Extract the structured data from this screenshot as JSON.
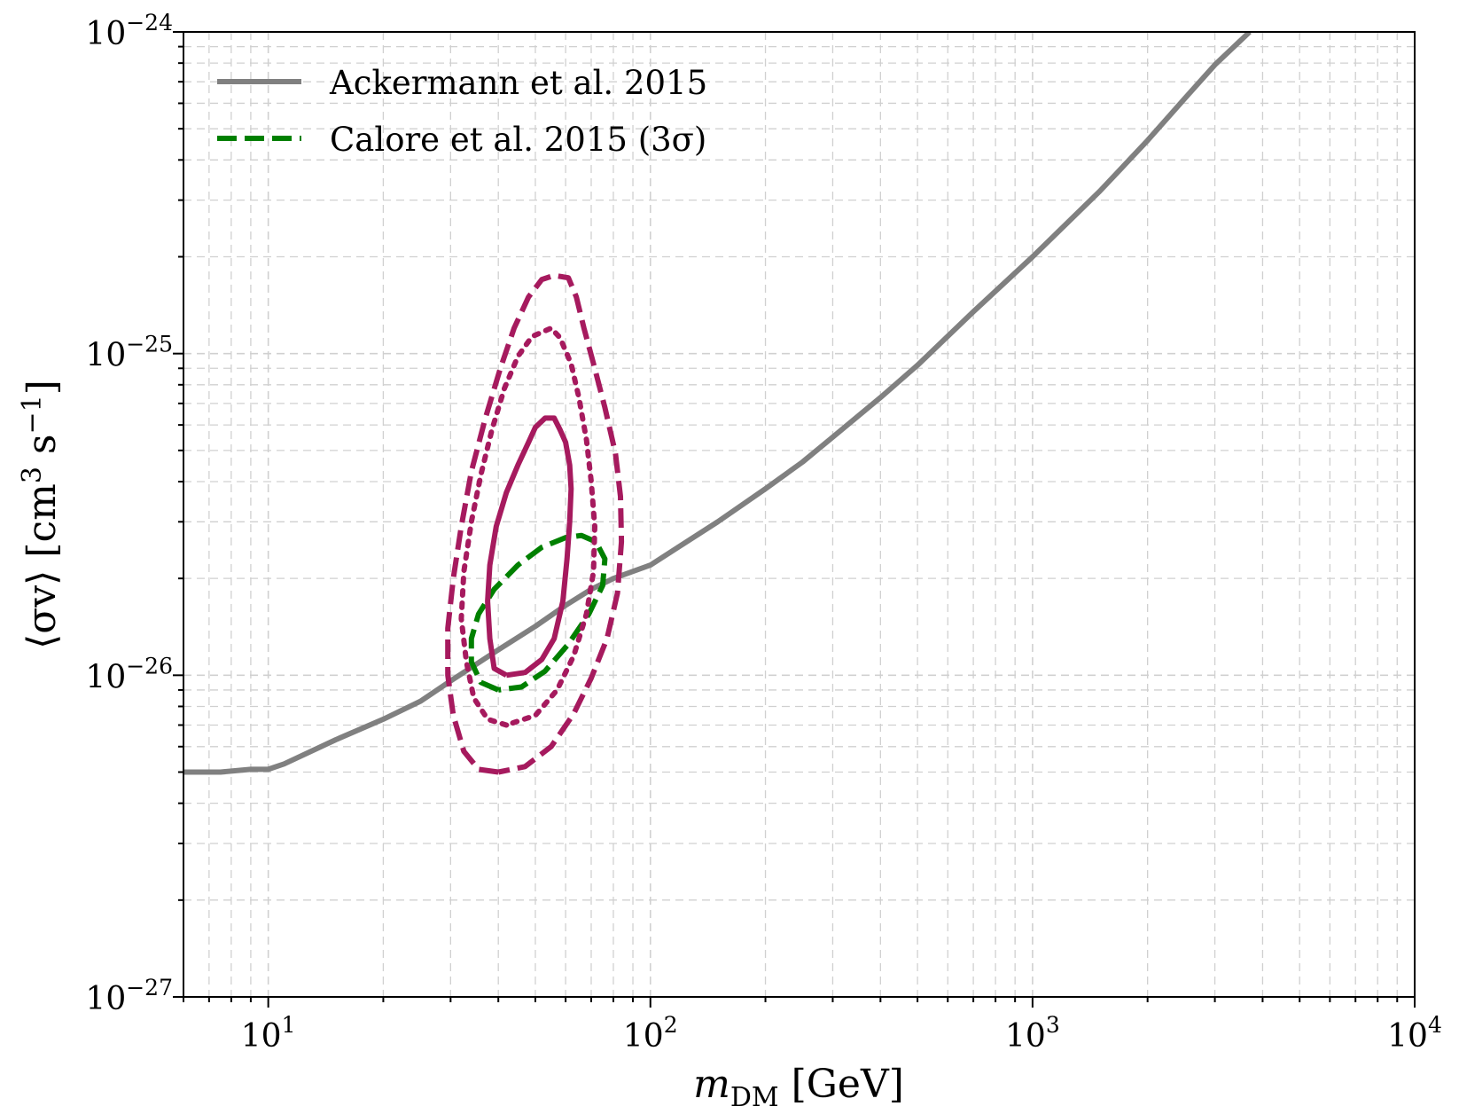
{
  "chart_data": {
    "type": "line",
    "xlabel": {
      "base": "m",
      "sub": "DM",
      "unit": " [GeV]"
    },
    "ylabel": {
      "text": "⟨σv⟩ [cm",
      "sup1": "3",
      "mid": " s",
      "sup2": "−1",
      "end": "]"
    },
    "xscale": "log",
    "yscale": "log",
    "xlim": [
      6,
      10000
    ],
    "ylim": [
      1e-27,
      1e-24
    ],
    "grid": true,
    "legend_position": "top-left",
    "x_ticks": [
      {
        "base": "10",
        "exp": "1",
        "value": 10
      },
      {
        "base": "10",
        "exp": "2",
        "value": 100
      },
      {
        "base": "10",
        "exp": "3",
        "value": 1000
      },
      {
        "base": "10",
        "exp": "4",
        "value": 10000
      }
    ],
    "y_ticks": [
      {
        "base": "10",
        "exp": "−27",
        "value": 1e-27
      },
      {
        "base": "10",
        "exp": "−26",
        "value": 1e-26
      },
      {
        "base": "10",
        "exp": "−25",
        "value": 1e-25
      },
      {
        "base": "10",
        "exp": "−24",
        "value": 1e-24
      }
    ],
    "series": [
      {
        "name": "Ackermann et al. 2015",
        "style": "solid",
        "color": "#808080",
        "in_legend": true,
        "points": [
          [
            6,
            5e-27
          ],
          [
            7.5,
            5e-27
          ],
          [
            9,
            5.1e-27
          ],
          [
            10,
            5.1e-27
          ],
          [
            11,
            5.3e-27
          ],
          [
            15,
            6.3e-27
          ],
          [
            20,
            7.3e-27
          ],
          [
            25,
            8.3e-27
          ],
          [
            30,
            9.6e-27
          ],
          [
            40,
            1.2e-26
          ],
          [
            50,
            1.42e-26
          ],
          [
            60,
            1.65e-26
          ],
          [
            70,
            1.85e-26
          ],
          [
            80,
            2e-26
          ],
          [
            100,
            2.2e-26
          ],
          [
            150,
            3e-26
          ],
          [
            200,
            3.8e-26
          ],
          [
            250,
            4.6e-26
          ],
          [
            300,
            5.5e-26
          ],
          [
            400,
            7.3e-26
          ],
          [
            500,
            9.2e-26
          ],
          [
            700,
            1.35e-25
          ],
          [
            1000,
            2e-25
          ],
          [
            1500,
            3.2e-25
          ],
          [
            2000,
            4.6e-25
          ],
          [
            2500,
            6.2e-25
          ],
          [
            3000,
            7.9e-25
          ],
          [
            3700,
            1e-24
          ]
        ]
      },
      {
        "name": "Calore et al. 2015 (3σ)",
        "style": "dashed",
        "color": "#008000",
        "in_legend": true,
        "points": [
          [
            40,
            9e-27
          ],
          [
            36,
            9.5e-27
          ],
          [
            34,
            1.1e-26
          ],
          [
            34,
            1.3e-26
          ],
          [
            35.5,
            1.55e-26
          ],
          [
            39,
            1.85e-26
          ],
          [
            45,
            2.2e-26
          ],
          [
            52,
            2.5e-26
          ],
          [
            60,
            2.68e-26
          ],
          [
            66,
            2.72e-26
          ],
          [
            72,
            2.6e-26
          ],
          [
            76,
            2.3e-26
          ],
          [
            75,
            1.9e-26
          ],
          [
            69,
            1.55e-26
          ],
          [
            61,
            1.25e-26
          ],
          [
            53,
            1.03e-26
          ],
          [
            46,
            9.2e-27
          ],
          [
            40,
            9e-27
          ]
        ]
      },
      {
        "name": "1σ contour",
        "style": "solid",
        "color": "#a61a5e",
        "in_legend": false,
        "points": [
          [
            42,
            1e-26
          ],
          [
            39,
            1.05e-26
          ],
          [
            38,
            1.3e-26
          ],
          [
            37.5,
            1.7e-26
          ],
          [
            38,
            2.2e-26
          ],
          [
            39.5,
            2.9e-26
          ],
          [
            42,
            3.7e-26
          ],
          [
            45,
            4.5e-26
          ],
          [
            48,
            5.3e-26
          ],
          [
            50,
            5.9e-26
          ],
          [
            53,
            6.3e-26
          ],
          [
            56,
            6.3e-26
          ],
          [
            58,
            5.8e-26
          ],
          [
            60,
            5.3e-26
          ],
          [
            61.5,
            4.5e-26
          ],
          [
            62,
            3.8e-26
          ],
          [
            61.5,
            3e-26
          ],
          [
            60.5,
            2.3e-26
          ],
          [
            59,
            1.7e-26
          ],
          [
            56,
            1.3e-26
          ],
          [
            52,
            1.12e-26
          ],
          [
            47,
            1.02e-26
          ],
          [
            42,
            1e-26
          ]
        ]
      },
      {
        "name": "2σ contour",
        "style": "dotted",
        "color": "#a61a5e",
        "in_legend": false,
        "points": [
          [
            42,
            7e-27
          ],
          [
            37.5,
            7.3e-27
          ],
          [
            34.5,
            8.5e-27
          ],
          [
            33,
            1.1e-26
          ],
          [
            32,
            1.5e-26
          ],
          [
            32.5,
            2.1e-26
          ],
          [
            34,
            3e-26
          ],
          [
            36,
            4.2e-26
          ],
          [
            38.5,
            5.8e-26
          ],
          [
            41.5,
            7.8e-26
          ],
          [
            45,
            9.8e-26
          ],
          [
            49,
            1.13e-25
          ],
          [
            55,
            1.2e-25
          ],
          [
            58,
            1.12e-25
          ],
          [
            62,
            9.3e-26
          ],
          [
            65,
            7.3e-26
          ],
          [
            68,
            5.4e-26
          ],
          [
            70,
            4e-26
          ],
          [
            71.5,
            2.9e-26
          ],
          [
            71,
            2.1e-26
          ],
          [
            68,
            1.55e-26
          ],
          [
            63,
            1.15e-26
          ],
          [
            57,
            9e-27
          ],
          [
            50,
            7.5e-27
          ],
          [
            42,
            7e-27
          ]
        ]
      },
      {
        "name": "3σ contour",
        "style": "dashed",
        "color": "#a61a5e",
        "in_legend": false,
        "points": [
          [
            40,
            5e-27
          ],
          [
            35.5,
            5.1e-27
          ],
          [
            32.5,
            5.8e-27
          ],
          [
            30.5,
            7.5e-27
          ],
          [
            29.5,
            1e-26
          ],
          [
            29.5,
            1.4e-26
          ],
          [
            30.5,
            2e-26
          ],
          [
            32,
            2.9e-26
          ],
          [
            34,
            4.3e-26
          ],
          [
            37,
            6.3e-26
          ],
          [
            40.5,
            9e-26
          ],
          [
            44,
            1.2e-25
          ],
          [
            48,
            1.5e-25
          ],
          [
            52,
            1.7e-25
          ],
          [
            56,
            1.75e-25
          ],
          [
            61,
            1.72e-25
          ],
          [
            64,
            1.5e-25
          ],
          [
            67,
            1.2e-25
          ],
          [
            71,
            9.3e-26
          ],
          [
            76,
            6.8e-26
          ],
          [
            81,
            4.9e-26
          ],
          [
            83.5,
            3.6e-26
          ],
          [
            84,
            2.6e-26
          ],
          [
            82,
            1.8e-26
          ],
          [
            77,
            1.3e-26
          ],
          [
            70,
            9.8e-27
          ],
          [
            63,
            7.6e-27
          ],
          [
            55,
            6e-27
          ],
          [
            47,
            5.2e-27
          ],
          [
            40,
            5e-27
          ]
        ]
      }
    ]
  }
}
